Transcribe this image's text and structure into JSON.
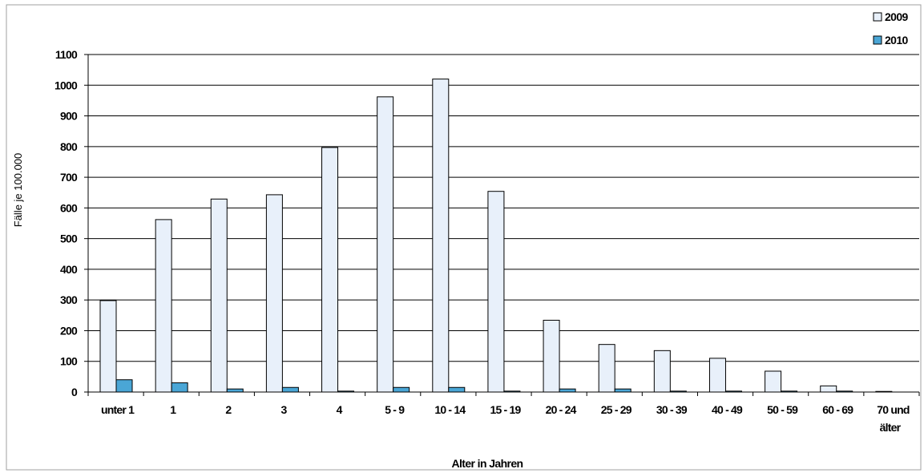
{
  "chart_data": {
    "type": "bar",
    "title": "",
    "xlabel": "Alter in Jahren",
    "ylabel": "Fälle je 100.000",
    "ylim": [
      0,
      1100
    ],
    "yticks": [
      "0",
      "100",
      "200",
      "300",
      "400",
      "500",
      "600",
      "700",
      "800",
      "900",
      "1000",
      "1100"
    ],
    "ytick_values": [
      0,
      100,
      200,
      300,
      400,
      500,
      600,
      700,
      800,
      900,
      1000,
      1100
    ],
    "grid": true,
    "legend_position": "top-right",
    "categories": [
      "unter 1",
      "1",
      "2",
      "3",
      "4",
      "5 - 9",
      "10 - 14",
      "15 - 19",
      "20 - 24",
      "25 - 29",
      "30 - 39",
      "40 - 49",
      "50 - 59",
      "60 - 69",
      "70 und älter"
    ],
    "series": [
      {
        "name": "2009",
        "color": "#e8f0fa",
        "values": [
          298,
          562,
          629,
          643,
          797,
          962,
          1020,
          654,
          234,
          155,
          135,
          110,
          68,
          20,
          2
        ]
      },
      {
        "name": "2010",
        "color": "#4aa6d6",
        "values": [
          40,
          30,
          10,
          15,
          3,
          15,
          15,
          3,
          10,
          10,
          3,
          3,
          3,
          3,
          0
        ]
      }
    ]
  }
}
